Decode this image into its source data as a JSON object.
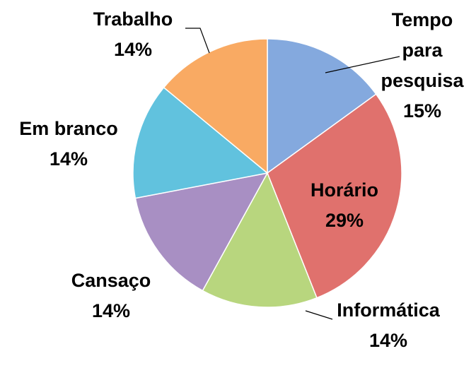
{
  "chart_data": {
    "type": "pie",
    "categories": [
      "Tempo para pesquisa",
      "Horário",
      "Informática",
      "Cansaço",
      "Em branco",
      "Trabalho"
    ],
    "values": [
      15,
      29,
      14,
      14,
      14,
      14
    ],
    "value_labels": [
      "15%",
      "29%",
      "14%",
      "14%",
      "14%",
      "14%"
    ],
    "colors": [
      "#84a9de",
      "#e0716d",
      "#b8d67e",
      "#a88fc3",
      "#61c2de",
      "#f9aa63"
    ]
  }
}
